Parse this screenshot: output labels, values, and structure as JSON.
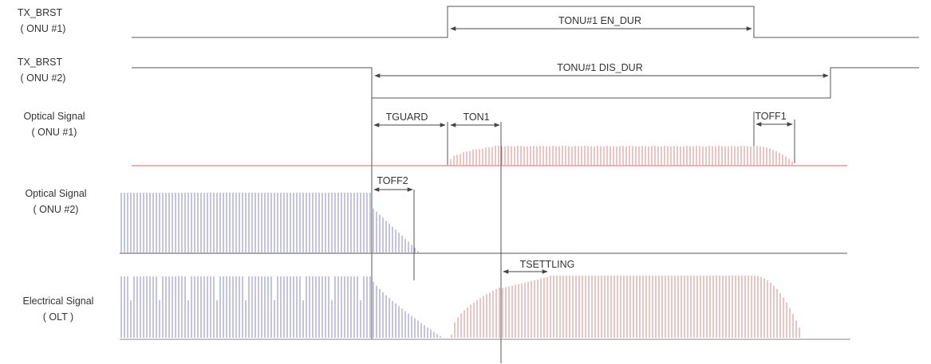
{
  "rows": [
    {
      "label_line1": "TX_BRST",
      "label_line2": "( ONU #1)"
    },
    {
      "label_line1": "TX_BRST",
      "label_line2": "( ONU #2)"
    },
    {
      "label_line1": "Optical Signal",
      "label_line2": "( ONU #1)"
    },
    {
      "label_line1": "Optical Signal",
      "label_line2": "( ONU #2)"
    },
    {
      "label_line1": "Electrical Signal",
      "label_line2": "(  OLT  )"
    }
  ],
  "timing": {
    "tonu1_en_dur": "TONU#1 EN_DUR",
    "tonu1_dis_dur": "TONU#1 DIS_DUR",
    "tguard": "TGUARD",
    "ton1": "TON1",
    "toff1": "TOFF1",
    "toff2": "TOFF2",
    "tsettling": "TSETTLING"
  },
  "colors": {
    "line": "#555555",
    "onu1_signal": "#d98a8a",
    "onu2_signal": "#8888cc",
    "baseline_red": "#d06060",
    "baseline_blue": "#7a7ab8"
  }
}
